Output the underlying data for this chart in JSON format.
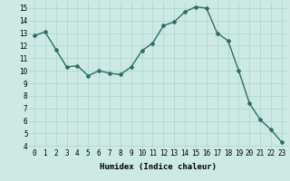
{
  "x": [
    0,
    1,
    2,
    3,
    4,
    5,
    6,
    7,
    8,
    9,
    10,
    11,
    12,
    13,
    14,
    15,
    16,
    17,
    18,
    19,
    20,
    21,
    22,
    23
  ],
  "y": [
    12.8,
    13.1,
    11.7,
    10.3,
    10.4,
    9.6,
    10.0,
    9.8,
    9.7,
    10.3,
    11.6,
    12.2,
    13.6,
    13.9,
    14.7,
    15.1,
    15.0,
    13.0,
    12.4,
    10.0,
    7.4,
    6.1,
    5.3,
    4.3
  ],
  "line_color": "#2e6e65",
  "marker": "D",
  "marker_size": 2.0,
  "bg_color": "#cce9e4",
  "grid_color": "#b0d8d2",
  "xlabel": "Humidex (Indice chaleur)",
  "ylim": [
    3.8,
    15.5
  ],
  "xlim": [
    -0.5,
    23.5
  ],
  "yticks": [
    4,
    5,
    6,
    7,
    8,
    9,
    10,
    11,
    12,
    13,
    14,
    15
  ],
  "xticks": [
    0,
    1,
    2,
    3,
    4,
    5,
    6,
    7,
    8,
    9,
    10,
    11,
    12,
    13,
    14,
    15,
    16,
    17,
    18,
    19,
    20,
    21,
    22,
    23
  ],
  "xlabel_fontsize": 6.5,
  "tick_fontsize": 5.5,
  "linewidth": 1.0
}
